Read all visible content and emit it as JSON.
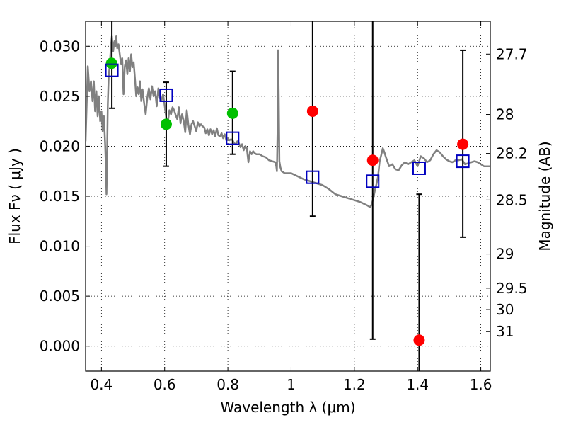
{
  "chart_data": {
    "type": "scatter",
    "xlabel": "Wavelength  λ (μm)",
    "ylabel_left": "Flux  Fν  ( μJy )",
    "ylabel_right": "Magnitude (AB)",
    "xlim": [
      0.35,
      1.63
    ],
    "ylim": [
      -0.0025,
      0.0325
    ],
    "xticks": [
      {
        "v": 0.4,
        "label": "0.4"
      },
      {
        "v": 0.6,
        "label": "0.6"
      },
      {
        "v": 0.8,
        "label": "0.8"
      },
      {
        "v": 1.0,
        "label": "1"
      },
      {
        "v": 1.2,
        "label": "1.2"
      },
      {
        "v": 1.4,
        "label": "1.4"
      },
      {
        "v": 1.6,
        "label": "1.6"
      }
    ],
    "yticks": [
      {
        "v": 0.0,
        "label": "0.000"
      },
      {
        "v": 0.005,
        "label": "0.005"
      },
      {
        "v": 0.01,
        "label": "0.010"
      },
      {
        "v": 0.015,
        "label": "0.015"
      },
      {
        "v": 0.02,
        "label": "0.020"
      },
      {
        "v": 0.025,
        "label": "0.025"
      },
      {
        "v": 0.03,
        "label": "0.030"
      }
    ],
    "mag_ticks": [
      {
        "v": 0.02922,
        "label": "27.7"
      },
      {
        "v": 0.02318,
        "label": "28"
      },
      {
        "v": 0.01928,
        "label": "28.2"
      },
      {
        "v": 0.01462,
        "label": "28.5"
      },
      {
        "v": 0.00922,
        "label": "29"
      },
      {
        "v": 0.0058,
        "label": "29.5"
      },
      {
        "v": 0.00366,
        "label": "30"
      },
      {
        "v": 0.00145,
        "label": "31"
      }
    ],
    "grid": true,
    "series": [
      {
        "name": "model spectrum",
        "kind": "line",
        "color": "#808080",
        "x": [
          0.35,
          0.357,
          0.362,
          0.367,
          0.372,
          0.376,
          0.38,
          0.384,
          0.388,
          0.392,
          0.396,
          0.4,
          0.404,
          0.408,
          0.412,
          0.414,
          0.416,
          0.418,
          0.42,
          0.423,
          0.426,
          0.43,
          0.433,
          0.437,
          0.441,
          0.444,
          0.447,
          0.45,
          0.454,
          0.458,
          0.462,
          0.466,
          0.47,
          0.474,
          0.478,
          0.482,
          0.486,
          0.49,
          0.494,
          0.498,
          0.502,
          0.506,
          0.51,
          0.514,
          0.518,
          0.522,
          0.526,
          0.53,
          0.535,
          0.54,
          0.545,
          0.55,
          0.555,
          0.56,
          0.565,
          0.57,
          0.575,
          0.58,
          0.585,
          0.59,
          0.595,
          0.6,
          0.605,
          0.61,
          0.615,
          0.62,
          0.625,
          0.63,
          0.635,
          0.64,
          0.645,
          0.65,
          0.655,
          0.66,
          0.665,
          0.67,
          0.675,
          0.68,
          0.685,
          0.69,
          0.695,
          0.7,
          0.705,
          0.71,
          0.715,
          0.72,
          0.725,
          0.73,
          0.735,
          0.74,
          0.745,
          0.75,
          0.755,
          0.76,
          0.765,
          0.77,
          0.775,
          0.78,
          0.785,
          0.79,
          0.795,
          0.8,
          0.805,
          0.81,
          0.815,
          0.82,
          0.825,
          0.83,
          0.835,
          0.84,
          0.845,
          0.85,
          0.855,
          0.86,
          0.865,
          0.87,
          0.875,
          0.88,
          0.885,
          0.89,
          0.9,
          0.91,
          0.92,
          0.93,
          0.94,
          0.95,
          0.953,
          0.955,
          0.957,
          0.959,
          0.961,
          0.963,
          0.966,
          0.97,
          0.98,
          1.0,
          1.02,
          1.04,
          1.06,
          1.08,
          1.1,
          1.12,
          1.14,
          1.16,
          1.18,
          1.2,
          1.22,
          1.24,
          1.245,
          1.25,
          1.255,
          1.26,
          1.265,
          1.27,
          1.275,
          1.28,
          1.285,
          1.29,
          1.295,
          1.3,
          1.31,
          1.32,
          1.33,
          1.34,
          1.35,
          1.36,
          1.37,
          1.38,
          1.39,
          1.4,
          1.41,
          1.42,
          1.43,
          1.44,
          1.45,
          1.46,
          1.47,
          1.48,
          1.49,
          1.5,
          1.51,
          1.52,
          1.53,
          1.54,
          1.55,
          1.56,
          1.57,
          1.58,
          1.59,
          1.6,
          1.61,
          1.62,
          1.63
        ],
        "y": [
          0.0205,
          0.028,
          0.0255,
          0.0265,
          0.0245,
          0.0265,
          0.0235,
          0.0255,
          0.023,
          0.025,
          0.0225,
          0.0235,
          0.0215,
          0.023,
          0.02,
          0.018,
          0.0152,
          0.019,
          0.024,
          0.027,
          0.028,
          0.03,
          0.031,
          0.0295,
          0.0305,
          0.03,
          0.031,
          0.0298,
          0.0302,
          0.0292,
          0.0282,
          0.0288,
          0.0252,
          0.028,
          0.0286,
          0.0272,
          0.0288,
          0.0275,
          0.0292,
          0.0279,
          0.0284,
          0.0268,
          0.025,
          0.0259,
          0.0252,
          0.0265,
          0.0245,
          0.0257,
          0.0243,
          0.0232,
          0.0248,
          0.0258,
          0.0247,
          0.026,
          0.025,
          0.0255,
          0.024,
          0.0258,
          0.0248,
          0.0246,
          0.0252,
          0.0241,
          0.0228,
          0.0224,
          0.0236,
          0.0232,
          0.0239,
          0.0236,
          0.0231,
          0.0227,
          0.0239,
          0.0223,
          0.0232,
          0.0226,
          0.0214,
          0.0236,
          0.0222,
          0.0212,
          0.0222,
          0.0225,
          0.022,
          0.0215,
          0.0224,
          0.022,
          0.0222,
          0.022,
          0.0219,
          0.0213,
          0.0217,
          0.0211,
          0.0217,
          0.0212,
          0.0216,
          0.021,
          0.0218,
          0.0211,
          0.021,
          0.0213,
          0.0208,
          0.0212,
          0.0206,
          0.0208,
          0.0206,
          0.0207,
          0.0206,
          0.0203,
          0.0202,
          0.0205,
          0.0203,
          0.0199,
          0.0202,
          0.0196,
          0.02,
          0.0198,
          0.0184,
          0.0195,
          0.0192,
          0.0195,
          0.0193,
          0.0192,
          0.0192,
          0.019,
          0.0189,
          0.0186,
          0.0185,
          0.0184,
          0.018,
          0.0175,
          0.0215,
          0.0296,
          0.025,
          0.0185,
          0.0179,
          0.0175,
          0.0173,
          0.0173,
          0.017,
          0.0167,
          0.0165,
          0.0163,
          0.0161,
          0.0157,
          0.0152,
          0.015,
          0.0148,
          0.0146,
          0.0144,
          0.0141,
          0.014,
          0.0139,
          0.0142,
          0.0148,
          0.0156,
          0.0162,
          0.017,
          0.0185,
          0.0191,
          0.0198,
          0.0194,
          0.0189,
          0.018,
          0.0182,
          0.0177,
          0.0176,
          0.0181,
          0.0184,
          0.0182,
          0.0184,
          0.0186,
          0.018,
          0.019,
          0.0188,
          0.0184,
          0.0186,
          0.0192,
          0.0196,
          0.0194,
          0.019,
          0.0187,
          0.0185,
          0.0184,
          0.0186,
          0.0186,
          0.0187,
          0.0182,
          0.0183,
          0.0184,
          0.0185,
          0.0184,
          0.0182,
          0.018,
          0.018,
          0.018
        ]
      },
      {
        "name": "green observed points",
        "kind": "point",
        "marker": "circle",
        "color": "#00c000",
        "x": [
          0.432,
          0.605,
          0.815
        ],
        "y": [
          0.0283,
          0.0222,
          0.0233
        ]
      },
      {
        "name": "red observed points",
        "kind": "point",
        "marker": "circle",
        "color": "#ff0000",
        "x": [
          1.068,
          1.258,
          1.405,
          1.543
        ],
        "y": [
          0.0235,
          0.0186,
          0.0006,
          0.0202
        ]
      },
      {
        "name": "model synthetic photometry",
        "kind": "point",
        "marker": "open-square",
        "color": "#0000c0",
        "x": [
          0.433,
          0.605,
          0.815,
          1.068,
          1.258,
          1.405,
          1.543
        ],
        "y": [
          0.0276,
          0.0251,
          0.0208,
          0.0169,
          0.0165,
          0.0178,
          0.0185
        ]
      }
    ],
    "errorbars": [
      {
        "x": 0.433,
        "y": 0.0283,
        "low": 0.0238,
        "high": 0.033
      },
      {
        "x": 0.605,
        "y": 0.0222,
        "low": 0.018,
        "high": 0.0264
      },
      {
        "x": 0.815,
        "y": 0.0233,
        "low": 0.0192,
        "high": 0.0275
      },
      {
        "x": 1.068,
        "y": 0.0235,
        "low": 0.013,
        "high": 0.033
      },
      {
        "x": 1.258,
        "y": 0.0186,
        "low": 0.0007,
        "high": 0.033
      },
      {
        "x": 1.405,
        "y": 0.0006,
        "low": -0.003,
        "high": 0.0152
      },
      {
        "x": 1.543,
        "y": 0.0202,
        "low": 0.0109,
        "high": 0.0296
      }
    ]
  }
}
